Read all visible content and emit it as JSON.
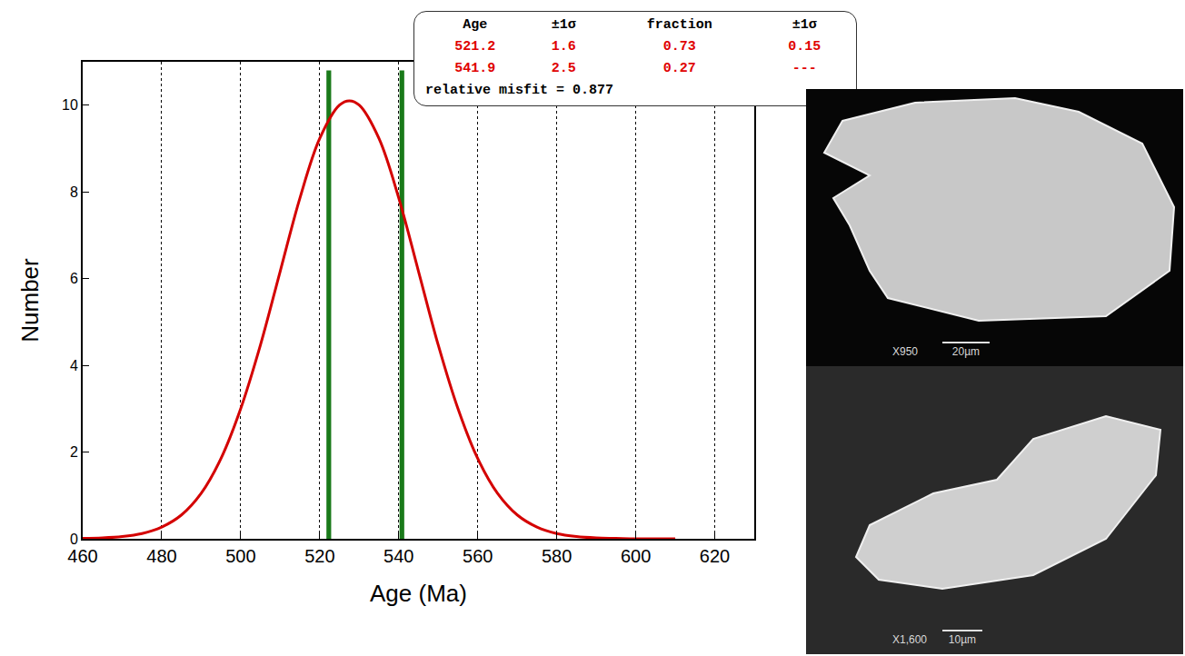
{
  "chart_data": {
    "type": "line",
    "x_label": "Age (Ma)",
    "y_label": "Number",
    "xlim": [
      460,
      630
    ],
    "xticks": [
      460,
      480,
      500,
      520,
      540,
      560,
      580,
      600,
      620
    ],
    "ylim": [
      0,
      11
    ],
    "yticks": [
      0,
      2,
      4,
      6,
      8,
      10
    ],
    "grid": "x",
    "series": [
      {
        "type": "line",
        "color": "#d40000",
        "line_style": "solid",
        "x": [
          460,
          465,
          470,
          475,
          480,
          485,
          490,
          495,
          500,
          505,
          510,
          515,
          520,
          525,
          527.5,
          530,
          535,
          540,
          545,
          550,
          555,
          560,
          565,
          570,
          575,
          580,
          585,
          590,
          595,
          600,
          605,
          610
        ],
        "values": [
          0.01,
          0.02,
          0.05,
          0.12,
          0.27,
          0.55,
          1.05,
          1.85,
          3.0,
          4.47,
          6.17,
          7.86,
          9.23,
          10.0,
          10.1,
          10.0,
          9.23,
          7.86,
          6.17,
          4.47,
          3.0,
          1.85,
          1.05,
          0.55,
          0.27,
          0.12,
          0.05,
          0.02,
          0.01,
          0.0,
          0.0,
          0.0
        ]
      },
      {
        "type": "bar",
        "color": "#1a7a1a",
        "x": [
          522.3,
          540.8
        ],
        "values": [
          10.8,
          10.8
        ]
      }
    ],
    "inset_table": {
      "columns": [
        "Age",
        "±1σ",
        "fraction",
        "±1σ"
      ],
      "rows": [
        [
          521.2,
          1.6,
          0.73,
          0.15
        ],
        [
          541.9,
          2.5,
          0.27,
          "---"
        ]
      ],
      "color": "#e00000",
      "footer": "relative misfit = 0.877"
    },
    "images": [
      {
        "magnification": "X950",
        "scale_bar": "20µm"
      },
      {
        "magnification": "X1,600",
        "scale_bar": "10µm"
      }
    ]
  }
}
